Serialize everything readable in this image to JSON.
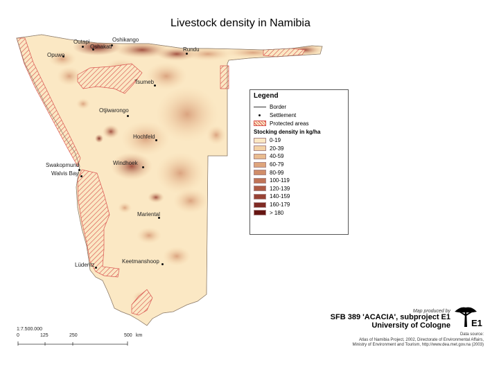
{
  "title": "Livestock density in Namibia",
  "places": [
    {
      "id": "outapi",
      "name": "Outapi"
    },
    {
      "id": "oshikango",
      "name": "Oshikango"
    },
    {
      "id": "oshakati",
      "name": "Oshakati"
    },
    {
      "id": "opuwo",
      "name": "Opuwo"
    },
    {
      "id": "rundu",
      "name": "Rundu"
    },
    {
      "id": "tsumeb",
      "name": "Tsumeb"
    },
    {
      "id": "otjiwarongo",
      "name": "Otjiwarongo"
    },
    {
      "id": "hochfeld",
      "name": "Hochfeld"
    },
    {
      "id": "swakopmund",
      "name": "Swakopmund"
    },
    {
      "id": "walvisbay",
      "name": "Walvis Bay"
    },
    {
      "id": "windhoek",
      "name": "Windhoek"
    },
    {
      "id": "mariental",
      "name": "Mariental"
    },
    {
      "id": "luderitz",
      "name": "Lüderitz"
    },
    {
      "id": "keetmanshoop",
      "name": "Keetmanshoop"
    }
  ],
  "legend": {
    "title": "Legend",
    "border": "Border",
    "settlement": "Settlement",
    "protected": "Protected areas",
    "density_title": "Stocking density in kg/ha",
    "classes": [
      {
        "label": "0-19",
        "color": "#fbe8c4"
      },
      {
        "label": "20-39",
        "color": "#f3d2a6"
      },
      {
        "label": "40-59",
        "color": "#e9bc90"
      },
      {
        "label": "60-79",
        "color": "#dea57c"
      },
      {
        "label": "80-99",
        "color": "#d08d69"
      },
      {
        "label": "100-119",
        "color": "#c07457"
      },
      {
        "label": "120-139",
        "color": "#ae5b45"
      },
      {
        "label": "140-159",
        "color": "#984234"
      },
      {
        "label": "160-179",
        "color": "#7f2a23"
      },
      {
        "label": "> 180",
        "color": "#661512"
      }
    ]
  },
  "credit": {
    "producer": "Map produced by",
    "project": "SFB 389 'ACACIA', subproject E1",
    "university": "University of Cologne",
    "logo_label": "E1"
  },
  "source": {
    "heading": "Data source:",
    "line1": "Atlas of Namibia Project, 2002, Directorate of Environmental Affairs,",
    "line2": "Ministry of Environment and Tourism, http://www.dea.met.gov.na (2003)"
  },
  "scale": {
    "ratio": "1:7.500.000",
    "ticks": [
      "0",
      "125",
      "250",
      "500",
      "km"
    ]
  }
}
